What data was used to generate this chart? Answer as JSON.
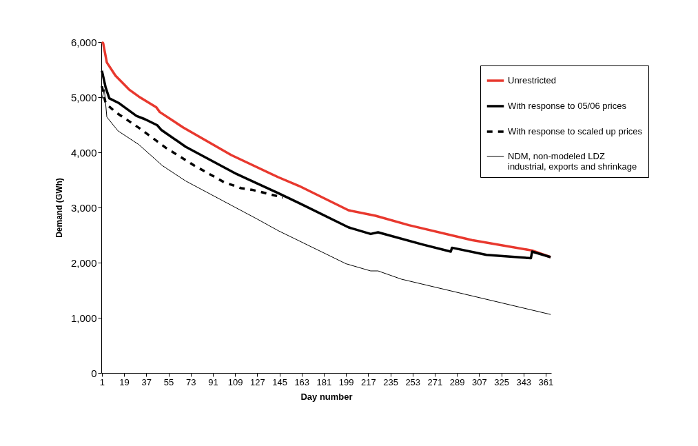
{
  "chart_data": {
    "type": "line",
    "xlabel": "Day number",
    "ylabel": "Demand (GWh)",
    "xlim": [
      0.5,
      365.5
    ],
    "xticks": [
      1,
      19,
      37,
      55,
      73,
      91,
      109,
      127,
      145,
      163,
      181,
      199,
      217,
      235,
      253,
      271,
      289,
      307,
      325,
      343,
      361
    ],
    "ylim": [
      0,
      6000
    ],
    "yticks": [
      0,
      {
        "value": 1000,
        "label": "1,000"
      },
      {
        "value": 2000,
        "label": "2,000"
      },
      {
        "value": 3000,
        "label": "3,000"
      },
      {
        "value": 4000,
        "label": "4,000"
      },
      {
        "value": 5000,
        "label": "5,000"
      },
      {
        "value": 6000,
        "label": "6,000"
      }
    ],
    "grid": false,
    "legend": "top right",
    "marker": "none",
    "series": [
      {
        "name": "Unrestricted",
        "color": "#e8382e",
        "line_style": "solid",
        "x": [
          1,
          2,
          5,
          12,
          23,
          31,
          45,
          48,
          67,
          106,
          144,
          161,
          201,
          223,
          250,
          301,
          350,
          365
        ],
        "values": [
          6000,
          5980,
          5630,
          5390,
          5140,
          5010,
          4820,
          4730,
          4450,
          3950,
          3550,
          3390,
          2950,
          2850,
          2680,
          2410,
          2220,
          2100
        ]
      },
      {
        "name": "With response to 05/06 prices",
        "color": "#000000",
        "line_style": "solid",
        "x": [
          1,
          4,
          7,
          15,
          29,
          36,
          46,
          49,
          69,
          110,
          144,
          161,
          201,
          219,
          225,
          261,
          284,
          285,
          313,
          349,
          350,
          365
        ],
        "values": [
          5480,
          5180,
          4980,
          4890,
          4660,
          4600,
          4490,
          4410,
          4100,
          3610,
          3260,
          3080,
          2640,
          2520,
          2550,
          2330,
          2200,
          2270,
          2140,
          2080,
          2200,
          2100
        ]
      },
      {
        "name": "With response to scaled up prices",
        "color": "#000000",
        "line_style": "dashed",
        "x": [
          1,
          4,
          12,
          32,
          53,
          76,
          100,
          114,
          123,
          148
        ],
        "values": [
          5200,
          4890,
          4730,
          4430,
          4080,
          3760,
          3460,
          3350,
          3320,
          3180
        ]
      },
      {
        "name": "NDM, non-modeled LDZ industrial, exports and shrinkage",
        "color": "#000000",
        "line_style": "solid",
        "x": [
          1,
          3,
          5,
          14,
          31,
          45,
          50,
          69,
          127,
          144,
          199,
          219,
          225,
          244,
          295,
          365
        ],
        "values": [
          4970,
          5140,
          4640,
          4390,
          4140,
          3860,
          3760,
          3480,
          2790,
          2580,
          1980,
          1850,
          1850,
          1700,
          1430,
          1060
        ]
      }
    ]
  }
}
